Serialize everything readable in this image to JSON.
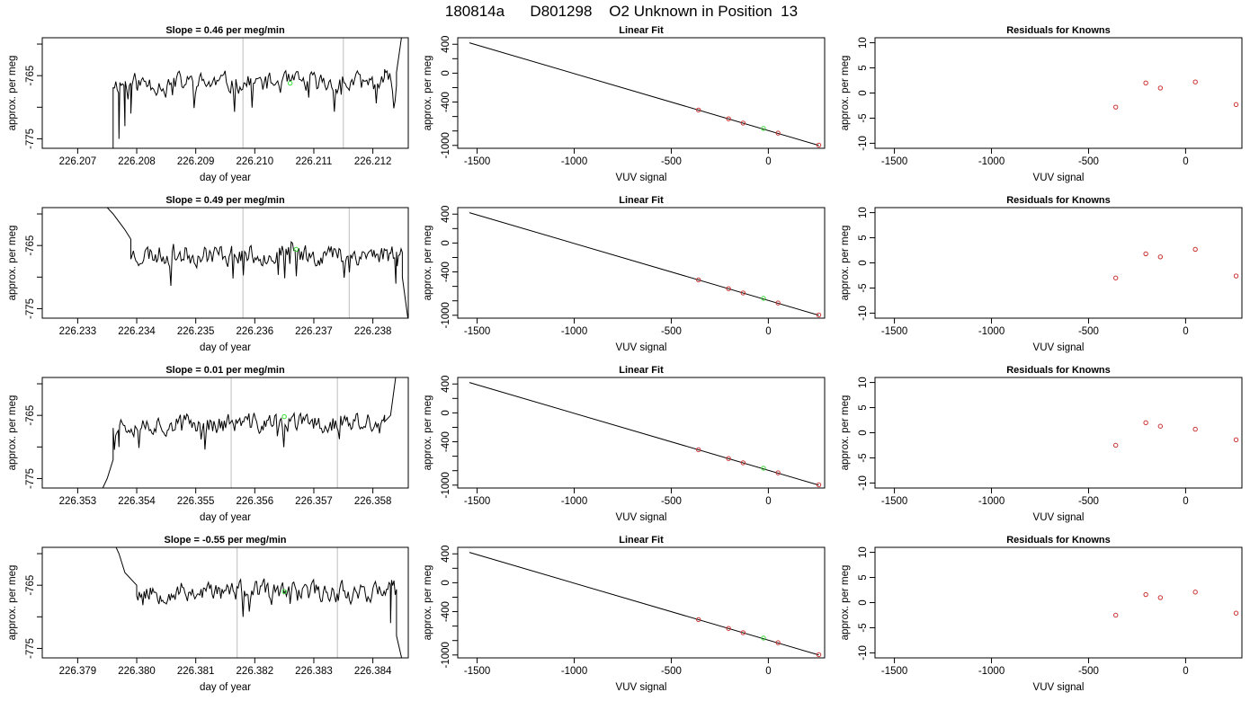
{
  "figure": {
    "title": "180814a      D801298    O2 Unknown in Position  13"
  },
  "colors": {
    "trace": "#000000",
    "marker_unknown": "#33dd33",
    "marker_known": "#cc3333",
    "vline": "#c8c8c8",
    "axis": "#000000"
  },
  "chart_data": [
    {
      "row": 0,
      "panel": "timeseries",
      "type": "line",
      "title": "Slope =  0.46  per meg/min",
      "xlabel": "day of year",
      "ylabel": "approx. per meg",
      "xlim": [
        226.2064,
        226.2126
      ],
      "ylim": [
        -776.5,
        -759
      ],
      "xticks": [
        {
          "v": 226.207,
          "l": "226.207"
        },
        {
          "v": 226.208,
          "l": "226.208"
        },
        {
          "v": 226.209,
          "l": "226.209"
        },
        {
          "v": 226.21,
          "l": "226.210"
        },
        {
          "v": 226.211,
          "l": "226.211"
        },
        {
          "v": 226.212,
          "l": "226.212"
        }
      ],
      "yticks": [
        {
          "v": -775,
          "l": "-775"
        },
        {
          "v": -770,
          "l": ""
        },
        {
          "v": -765,
          "l": "-765"
        },
        {
          "v": -760,
          "l": ""
        }
      ],
      "vlines": [
        226.2098,
        226.2115
      ],
      "trace": {
        "start": 226.2076,
        "end": 226.2124,
        "seed": 11,
        "base": -766.2,
        "amp": 1.8,
        "head": [
          [
            226.2076,
            -778
          ],
          [
            226.2077,
            -775
          ],
          [
            226.2078,
            -773
          ],
          [
            226.2079,
            -771
          ],
          [
            226.208,
            -767
          ]
        ],
        "tail": [
          [
            226.2122,
            -764
          ],
          [
            226.2124,
            -764.5
          ],
          [
            226.2125,
            -758
          ]
        ]
      },
      "marker": {
        "x": 226.2106,
        "y": -766.2,
        "color": "#33dd33"
      }
    },
    {
      "row": 0,
      "panel": "linearfit",
      "type": "line+scatter",
      "title": "Linear Fit",
      "xlabel": "VUV signal",
      "ylabel": "approx. per meg",
      "xlim": [
        -1600,
        290
      ],
      "ylim": [
        -1040,
        490
      ],
      "xticks": [
        {
          "v": -1500,
          "l": "-1500"
        },
        {
          "v": -1000,
          "l": "-1000"
        },
        {
          "v": -500,
          "l": "-500"
        },
        {
          "v": 0,
          "l": "0"
        }
      ],
      "yticks": [
        {
          "v": -1000,
          "l": "-1000"
        },
        {
          "v": -800,
          "l": ""
        },
        {
          "v": -600,
          "l": ""
        },
        {
          "v": -400,
          "l": "-400"
        },
        {
          "v": -200,
          "l": ""
        },
        {
          "v": 0,
          "l": "0"
        },
        {
          "v": 200,
          "l": ""
        },
        {
          "v": 400,
          "l": "400"
        }
      ],
      "fit": {
        "x": [
          -1540,
          260
        ],
        "y": [
          420,
          -1000
        ]
      },
      "knowns": [
        {
          "x": -360,
          "y": -510
        },
        {
          "x": -205,
          "y": -632
        },
        {
          "x": -130,
          "y": -691
        },
        {
          "x": 50,
          "y": -830
        },
        {
          "x": 260,
          "y": -996
        }
      ],
      "unknown": {
        "x": -25,
        "y": -766
      }
    },
    {
      "row": 0,
      "panel": "residuals",
      "type": "scatter",
      "title": "Residuals for Knowns",
      "xlabel": "VUV signal",
      "ylabel": "approx. per meg",
      "xlim": [
        -1600,
        290
      ],
      "ylim": [
        -11,
        11
      ],
      "xticks": [
        {
          "v": -1500,
          "l": "-1500"
        },
        {
          "v": -1000,
          "l": "-1000"
        },
        {
          "v": -500,
          "l": "-500"
        },
        {
          "v": 0,
          "l": "0"
        }
      ],
      "yticks": [
        {
          "v": -10,
          "l": "-10"
        },
        {
          "v": -5,
          "l": "-5"
        },
        {
          "v": 0,
          "l": "0"
        },
        {
          "v": 5,
          "l": "5"
        },
        {
          "v": 10,
          "l": "10"
        }
      ],
      "points": [
        {
          "x": -360,
          "y": -2.8
        },
        {
          "x": -205,
          "y": 2.0
        },
        {
          "x": -130,
          "y": 1.0
        },
        {
          "x": 50,
          "y": 2.2
        },
        {
          "x": 260,
          "y": -2.3
        }
      ]
    },
    {
      "row": 1,
      "panel": "timeseries",
      "type": "line",
      "title": "Slope =  0.49  per meg/min",
      "xlabel": "day of year",
      "ylabel": "approx. per meg",
      "xlim": [
        226.2324,
        226.2386
      ],
      "ylim": [
        -776.5,
        -759
      ],
      "xticks": [
        {
          "v": 226.233,
          "l": "226.233"
        },
        {
          "v": 226.234,
          "l": "226.234"
        },
        {
          "v": 226.235,
          "l": "226.235"
        },
        {
          "v": 226.236,
          "l": "226.236"
        },
        {
          "v": 226.237,
          "l": "226.237"
        },
        {
          "v": 226.238,
          "l": "226.238"
        }
      ],
      "yticks": [
        {
          "v": -775,
          "l": "-775"
        },
        {
          "v": -770,
          "l": ""
        },
        {
          "v": -765,
          "l": "-765"
        },
        {
          "v": -760,
          "l": ""
        }
      ],
      "vlines": [
        226.2358,
        226.2376
      ],
      "trace": {
        "start": 226.2339,
        "end": 226.2385,
        "seed": 23,
        "base": -766.4,
        "amp": 1.9,
        "head": [
          [
            226.2334,
            -758
          ],
          [
            226.2336,
            -760
          ],
          [
            226.2338,
            -762.5
          ],
          [
            226.2339,
            -764
          ]
        ],
        "tail": [
          [
            226.2384,
            -766
          ],
          [
            226.2385,
            -770
          ],
          [
            226.2386,
            -777
          ]
        ]
      },
      "marker": {
        "x": 226.2367,
        "y": -765.6,
        "color": "#33dd33"
      }
    },
    {
      "row": 1,
      "panel": "linearfit",
      "type": "line+scatter",
      "title": "Linear Fit",
      "xlabel": "VUV signal",
      "ylabel": "approx. per meg",
      "xlim": [
        -1600,
        290
      ],
      "ylim": [
        -1040,
        490
      ],
      "xticks": [
        {
          "v": -1500,
          "l": "-1500"
        },
        {
          "v": -1000,
          "l": "-1000"
        },
        {
          "v": -500,
          "l": "-500"
        },
        {
          "v": 0,
          "l": "0"
        }
      ],
      "yticks": [
        {
          "v": -1000,
          "l": "-1000"
        },
        {
          "v": -800,
          "l": ""
        },
        {
          "v": -600,
          "l": ""
        },
        {
          "v": -400,
          "l": "-400"
        },
        {
          "v": -200,
          "l": ""
        },
        {
          "v": 0,
          "l": "0"
        },
        {
          "v": 200,
          "l": ""
        },
        {
          "v": 400,
          "l": "400"
        }
      ],
      "fit": {
        "x": [
          -1540,
          260
        ],
        "y": [
          420,
          -1000
        ]
      },
      "knowns": [
        {
          "x": -360,
          "y": -510
        },
        {
          "x": -205,
          "y": -632
        },
        {
          "x": -130,
          "y": -691
        },
        {
          "x": 50,
          "y": -830
        },
        {
          "x": 260,
          "y": -996
        }
      ],
      "unknown": {
        "x": -25,
        "y": -766
      }
    },
    {
      "row": 1,
      "panel": "residuals",
      "type": "scatter",
      "title": "Residuals for Knowns",
      "xlabel": "VUV signal",
      "ylabel": "approx. per meg",
      "xlim": [
        -1600,
        290
      ],
      "ylim": [
        -11,
        11
      ],
      "xticks": [
        {
          "v": -1500,
          "l": "-1500"
        },
        {
          "v": -1000,
          "l": "-1000"
        },
        {
          "v": -500,
          "l": "-500"
        },
        {
          "v": 0,
          "l": "0"
        }
      ],
      "yticks": [
        {
          "v": -10,
          "l": "-10"
        },
        {
          "v": -5,
          "l": "-5"
        },
        {
          "v": 0,
          "l": "0"
        },
        {
          "v": 5,
          "l": "5"
        },
        {
          "v": 10,
          "l": "10"
        }
      ],
      "points": [
        {
          "x": -360,
          "y": -3.0
        },
        {
          "x": -205,
          "y": 1.8
        },
        {
          "x": -130,
          "y": 1.2
        },
        {
          "x": 50,
          "y": 2.7
        },
        {
          "x": 260,
          "y": -2.6
        }
      ]
    },
    {
      "row": 2,
      "panel": "timeseries",
      "type": "line",
      "title": "Slope =  0.01  per meg/min",
      "xlabel": "day of year",
      "ylabel": "approx. per meg",
      "xlim": [
        226.3524,
        226.3586
      ],
      "ylim": [
        -776.5,
        -759
      ],
      "xticks": [
        {
          "v": 226.353,
          "l": "226.353"
        },
        {
          "v": 226.354,
          "l": "226.354"
        },
        {
          "v": 226.355,
          "l": "226.355"
        },
        {
          "v": 226.356,
          "l": "226.356"
        },
        {
          "v": 226.357,
          "l": "226.357"
        },
        {
          "v": 226.358,
          "l": "226.358"
        }
      ],
      "yticks": [
        {
          "v": -775,
          "l": "-775"
        },
        {
          "v": -770,
          "l": ""
        },
        {
          "v": -765,
          "l": "-765"
        },
        {
          "v": -760,
          "l": ""
        }
      ],
      "vlines": [
        226.3556,
        226.3574
      ],
      "trace": {
        "start": 226.3536,
        "end": 226.3582,
        "seed": 37,
        "base": -766.3,
        "amp": 1.8,
        "head": [
          [
            226.3534,
            -777
          ],
          [
            226.3535,
            -775
          ],
          [
            226.3536,
            -772
          ],
          [
            226.3537,
            -770
          ]
        ],
        "tail": [
          [
            226.3582,
            -766
          ],
          [
            226.3583,
            -765
          ],
          [
            226.3584,
            -758
          ]
        ]
      },
      "marker": {
        "x": 226.3565,
        "y": -765.2,
        "color": "#33dd33"
      }
    },
    {
      "row": 2,
      "panel": "linearfit",
      "type": "line+scatter",
      "title": "Linear Fit",
      "xlabel": "VUV signal",
      "ylabel": "approx. per meg",
      "xlim": [
        -1600,
        290
      ],
      "ylim": [
        -1040,
        490
      ],
      "xticks": [
        {
          "v": -1500,
          "l": "-1500"
        },
        {
          "v": -1000,
          "l": "-1000"
        },
        {
          "v": -500,
          "l": "-500"
        },
        {
          "v": 0,
          "l": "0"
        }
      ],
      "yticks": [
        {
          "v": -1000,
          "l": "-1000"
        },
        {
          "v": -800,
          "l": ""
        },
        {
          "v": -600,
          "l": ""
        },
        {
          "v": -400,
          "l": "-400"
        },
        {
          "v": -200,
          "l": ""
        },
        {
          "v": 0,
          "l": "0"
        },
        {
          "v": 200,
          "l": ""
        },
        {
          "v": 400,
          "l": "400"
        }
      ],
      "fit": {
        "x": [
          -1540,
          260
        ],
        "y": [
          420,
          -1000
        ]
      },
      "knowns": [
        {
          "x": -360,
          "y": -510
        },
        {
          "x": -205,
          "y": -632
        },
        {
          "x": -130,
          "y": -691
        },
        {
          "x": 50,
          "y": -830
        },
        {
          "x": 260,
          "y": -996
        }
      ],
      "unknown": {
        "x": -25,
        "y": -766
      }
    },
    {
      "row": 2,
      "panel": "residuals",
      "type": "scatter",
      "title": "Residuals for Knowns",
      "xlabel": "VUV signal",
      "ylabel": "approx. per meg",
      "xlim": [
        -1600,
        290
      ],
      "ylim": [
        -11,
        11
      ],
      "xticks": [
        {
          "v": -1500,
          "l": "-1500"
        },
        {
          "v": -1000,
          "l": "-1000"
        },
        {
          "v": -500,
          "l": "-500"
        },
        {
          "v": 0,
          "l": "0"
        }
      ],
      "yticks": [
        {
          "v": -10,
          "l": "-10"
        },
        {
          "v": -5,
          "l": "-5"
        },
        {
          "v": 0,
          "l": "0"
        },
        {
          "v": 5,
          "l": "5"
        },
        {
          "v": 10,
          "l": "10"
        }
      ],
      "points": [
        {
          "x": -360,
          "y": -2.5
        },
        {
          "x": -205,
          "y": 2.0
        },
        {
          "x": -130,
          "y": 1.3
        },
        {
          "x": 50,
          "y": 0.7
        },
        {
          "x": 260,
          "y": -1.4
        }
      ]
    },
    {
      "row": 3,
      "panel": "timeseries",
      "type": "line",
      "title": "Slope =  -0.55  per meg/min",
      "xlabel": "day of year",
      "ylabel": "approx. per meg",
      "xlim": [
        226.3784,
        226.3846
      ],
      "ylim": [
        -776.5,
        -759
      ],
      "xticks": [
        {
          "v": 226.379,
          "l": "226.379"
        },
        {
          "v": 226.38,
          "l": "226.380"
        },
        {
          "v": 226.381,
          "l": "226.381"
        },
        {
          "v": 226.382,
          "l": "226.382"
        },
        {
          "v": 226.383,
          "l": "226.383"
        },
        {
          "v": 226.384,
          "l": "226.384"
        }
      ],
      "yticks": [
        {
          "v": -775,
          "l": "-775"
        },
        {
          "v": -770,
          "l": ""
        },
        {
          "v": -765,
          "l": "-765"
        },
        {
          "v": -760,
          "l": ""
        }
      ],
      "vlines": [
        226.3817,
        226.3834
      ],
      "trace": {
        "start": 226.38,
        "end": 226.3844,
        "seed": 53,
        "base": -766.0,
        "amp": 1.8,
        "head": [
          [
            226.3796,
            -758
          ],
          [
            226.3797,
            -760
          ],
          [
            226.3798,
            -763
          ],
          [
            226.38,
            -765
          ]
        ],
        "tail": [
          [
            226.3843,
            -771
          ],
          [
            226.3844,
            -773
          ],
          [
            226.3845,
            -777
          ]
        ]
      },
      "marker": {
        "x": 226.3825,
        "y": -766.0,
        "color": "#33dd33"
      }
    },
    {
      "row": 3,
      "panel": "linearfit",
      "type": "line+scatter",
      "title": "Linear Fit",
      "xlabel": "VUV signal",
      "ylabel": "approx. per meg",
      "xlim": [
        -1600,
        290
      ],
      "ylim": [
        -1040,
        490
      ],
      "xticks": [
        {
          "v": -1500,
          "l": "-1500"
        },
        {
          "v": -1000,
          "l": "-1000"
        },
        {
          "v": -500,
          "l": "-500"
        },
        {
          "v": 0,
          "l": "0"
        }
      ],
      "yticks": [
        {
          "v": -1000,
          "l": "-1000"
        },
        {
          "v": -800,
          "l": ""
        },
        {
          "v": -600,
          "l": ""
        },
        {
          "v": -400,
          "l": "-400"
        },
        {
          "v": -200,
          "l": ""
        },
        {
          "v": 0,
          "l": "0"
        },
        {
          "v": 200,
          "l": ""
        },
        {
          "v": 400,
          "l": "400"
        }
      ],
      "fit": {
        "x": [
          -1540,
          260
        ],
        "y": [
          420,
          -1000
        ]
      },
      "knowns": [
        {
          "x": -360,
          "y": -510
        },
        {
          "x": -205,
          "y": -632
        },
        {
          "x": -130,
          "y": -691
        },
        {
          "x": 50,
          "y": -830
        },
        {
          "x": 260,
          "y": -996
        }
      ],
      "unknown": {
        "x": -25,
        "y": -766
      }
    },
    {
      "row": 3,
      "panel": "residuals",
      "type": "scatter",
      "title": "Residuals for Knowns",
      "xlabel": "VUV signal",
      "ylabel": "approx. per meg",
      "xlim": [
        -1600,
        290
      ],
      "ylim": [
        -11,
        11
      ],
      "xticks": [
        {
          "v": -1500,
          "l": "-1500"
        },
        {
          "v": -1000,
          "l": "-1000"
        },
        {
          "v": -500,
          "l": "-500"
        },
        {
          "v": 0,
          "l": "0"
        }
      ],
      "yticks": [
        {
          "v": -10,
          "l": "-10"
        },
        {
          "v": -5,
          "l": "-5"
        },
        {
          "v": 0,
          "l": "0"
        },
        {
          "v": 5,
          "l": "5"
        },
        {
          "v": 10,
          "l": "10"
        }
      ],
      "points": [
        {
          "x": -360,
          "y": -2.5
        },
        {
          "x": -205,
          "y": 1.6
        },
        {
          "x": -130,
          "y": 1.0
        },
        {
          "x": 50,
          "y": 2.1
        },
        {
          "x": 260,
          "y": -2.1
        }
      ]
    }
  ]
}
